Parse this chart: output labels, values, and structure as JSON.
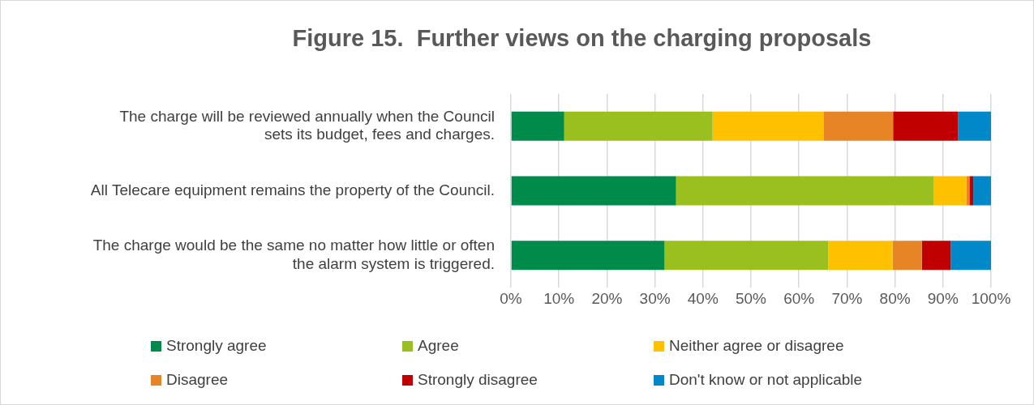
{
  "chart_data": {
    "type": "bar",
    "orientation": "horizontal",
    "stacked": true,
    "title": "Figure 15.  Further views on the charging proposals",
    "categories": [
      "The charge will be reviewed annually when the Council sets its budget, fees and charges.",
      "All Telecare equipment remains the property of the Council.",
      "The charge would be the same no matter how little or often the alarm system is triggered."
    ],
    "series": [
      {
        "name": "Strongly agree",
        "color": "#008b4a",
        "values": [
          11.1,
          34.4,
          32.0
        ]
      },
      {
        "name": "Agree",
        "color": "#99c01f",
        "values": [
          30.9,
          53.7,
          34.1
        ]
      },
      {
        "name": "Neither agree or disagree",
        "color": "#ffc000",
        "values": [
          23.2,
          6.8,
          13.4
        ]
      },
      {
        "name": "Disagree",
        "color": "#e68426",
        "values": [
          14.4,
          0.6,
          6.1
        ]
      },
      {
        "name": "Strongly disagree",
        "color": "#c00000",
        "values": [
          13.5,
          0.8,
          6.0
        ]
      },
      {
        "name": "Don't know or not applicable",
        "color": "#0088c8",
        "values": [
          6.9,
          3.7,
          8.4
        ]
      }
    ],
    "xlim": [
      0,
      100
    ],
    "xticks": [
      {
        "value": 0,
        "label": "0%"
      },
      {
        "value": 10,
        "label": "10%"
      },
      {
        "value": 20,
        "label": "20%"
      },
      {
        "value": 30,
        "label": "30%"
      },
      {
        "value": 40,
        "label": "40%"
      },
      {
        "value": 50,
        "label": "50%"
      },
      {
        "value": 60,
        "label": "60%"
      },
      {
        "value": 70,
        "label": "70%"
      },
      {
        "value": 80,
        "label": "80%"
      },
      {
        "value": 90,
        "label": "90%"
      },
      {
        "value": 100,
        "label": "100%"
      }
    ],
    "grid": "x",
    "legend": "bottom"
  }
}
